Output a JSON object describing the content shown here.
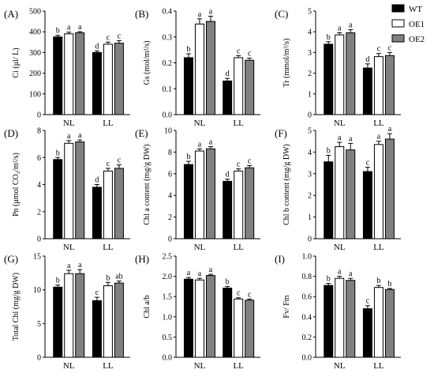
{
  "legend": {
    "entries": [
      {
        "name": "WT",
        "color": "#000000"
      },
      {
        "name": "OE1",
        "color": "#ffffff"
      },
      {
        "name": "OE2",
        "color": "#808080"
      }
    ],
    "placement": "top-right"
  },
  "colors": {
    "WT": "#000000",
    "OE1": "#ffffff",
    "OE2": "#808080"
  },
  "chart_data": [
    {
      "panel": "(A)",
      "type": "bar",
      "categories": [
        "NL",
        "LL"
      ],
      "ylabel": "Ci (μl/ L)",
      "ylim": [
        0,
        500
      ],
      "yticks": [
        "0",
        "100",
        "200",
        "300",
        "400",
        "500"
      ],
      "series": [
        {
          "name": "WT",
          "values": [
            375,
            300
          ],
          "errors": [
            8,
            8
          ],
          "letters": [
            "b",
            "d"
          ]
        },
        {
          "name": "OE1",
          "values": [
            390,
            340
          ],
          "errors": [
            8,
            10
          ],
          "letters": [
            "a",
            "c"
          ]
        },
        {
          "name": "OE2",
          "values": [
            395,
            345
          ],
          "errors": [
            6,
            12
          ],
          "letters": [
            "a",
            "c"
          ]
        }
      ]
    },
    {
      "panel": "(B)",
      "type": "bar",
      "categories": [
        "NL",
        "LL"
      ],
      "ylabel": "Gs (mol/m²/s)",
      "ylim": [
        0,
        0.4
      ],
      "yticks": [
        "0.0",
        "0.1",
        "0.2",
        "0.3",
        "0.4"
      ],
      "series": [
        {
          "name": "WT",
          "values": [
            0.22,
            0.13
          ],
          "errors": [
            0.015,
            0.01
          ],
          "letters": [
            "b",
            "d"
          ]
        },
        {
          "name": "OE1",
          "values": [
            0.35,
            0.22
          ],
          "errors": [
            0.02,
            0.008
          ],
          "letters": [
            "a",
            "c"
          ]
        },
        {
          "name": "OE2",
          "values": [
            0.36,
            0.21
          ],
          "errors": [
            0.02,
            0.008
          ],
          "letters": [
            "a",
            "c"
          ]
        }
      ]
    },
    {
      "panel": "(C)",
      "type": "bar",
      "categories": [
        "NL",
        "LL"
      ],
      "ylabel": "Tr (mmol/m²/s)",
      "ylim": [
        0,
        5
      ],
      "yticks": [
        "0",
        "1",
        "2",
        "3",
        "4",
        "5"
      ],
      "series": [
        {
          "name": "WT",
          "values": [
            3.4,
            2.25
          ],
          "errors": [
            0.12,
            0.2
          ],
          "letters": [
            "b",
            "d"
          ]
        },
        {
          "name": "OE1",
          "values": [
            3.85,
            2.8
          ],
          "errors": [
            0.1,
            0.15
          ],
          "letters": [
            "a",
            "c"
          ]
        },
        {
          "name": "OE2",
          "values": [
            3.95,
            2.85
          ],
          "errors": [
            0.15,
            0.15
          ],
          "letters": [
            "a",
            "c"
          ]
        }
      ]
    },
    {
      "panel": "(D)",
      "type": "bar",
      "categories": [
        "NL",
        "LL"
      ],
      "ylabel": "Pn (μmol CO₂/m²/s)",
      "ylim": [
        0,
        8
      ],
      "yticks": [
        "0",
        "2",
        "4",
        "6",
        "8"
      ],
      "series": [
        {
          "name": "WT",
          "values": [
            5.85,
            3.8
          ],
          "errors": [
            0.15,
            0.2
          ],
          "letters": [
            "b",
            "d"
          ]
        },
        {
          "name": "OE1",
          "values": [
            7.05,
            5.0
          ],
          "errors": [
            0.2,
            0.2
          ],
          "letters": [
            "a",
            "c"
          ]
        },
        {
          "name": "OE2",
          "values": [
            7.15,
            5.2
          ],
          "errors": [
            0.15,
            0.25
          ],
          "letters": [
            "a",
            "c"
          ]
        }
      ]
    },
    {
      "panel": "(E)",
      "type": "bar",
      "categories": [
        "NL",
        "LL"
      ],
      "ylabel": "Chl a content (mg/g DW)",
      "ylim": [
        0,
        10
      ],
      "yticks": [
        "0",
        "2",
        "4",
        "6",
        "8",
        "10"
      ],
      "series": [
        {
          "name": "WT",
          "values": [
            6.85,
            5.3
          ],
          "errors": [
            0.3,
            0.2
          ],
          "letters": [
            "b",
            "d"
          ]
        },
        {
          "name": "OE1",
          "values": [
            8.1,
            6.25
          ],
          "errors": [
            0.2,
            0.2
          ],
          "letters": [
            "a",
            "c"
          ]
        },
        {
          "name": "OE2",
          "values": [
            8.3,
            6.55
          ],
          "errors": [
            0.2,
            0.2
          ],
          "letters": [
            "a",
            "c"
          ]
        }
      ]
    },
    {
      "panel": "(F)",
      "type": "bar",
      "categories": [
        "NL",
        "LL"
      ],
      "ylabel": "Chl b content (mg/g DW)",
      "ylim": [
        0,
        5
      ],
      "yticks": [
        "0",
        "1",
        "2",
        "3",
        "4",
        "5"
      ],
      "series": [
        {
          "name": "WT",
          "values": [
            3.55,
            3.1
          ],
          "errors": [
            0.3,
            0.2
          ],
          "letters": [
            "b",
            "c"
          ]
        },
        {
          "name": "OE1",
          "values": [
            4.25,
            4.35
          ],
          "errors": [
            0.2,
            0.15
          ],
          "letters": [
            "a",
            "a"
          ]
        },
        {
          "name": "OE2",
          "values": [
            4.1,
            4.6
          ],
          "errors": [
            0.3,
            0.25
          ],
          "letters": [
            "a",
            "a"
          ]
        }
      ]
    },
    {
      "panel": "(G)",
      "type": "bar",
      "categories": [
        "NL",
        "LL"
      ],
      "ylabel": "Total Chl (mg/g DW)",
      "ylim": [
        0,
        15
      ],
      "yticks": [
        "0",
        "5",
        "10",
        "15"
      ],
      "series": [
        {
          "name": "WT",
          "values": [
            10.4,
            8.4
          ],
          "errors": [
            0.3,
            0.5
          ],
          "letters": [
            "b",
            "c"
          ]
        },
        {
          "name": "OE1",
          "values": [
            12.4,
            10.6
          ],
          "errors": [
            0.5,
            0.5
          ],
          "letters": [
            "a",
            "b"
          ]
        },
        {
          "name": "OE2",
          "values": [
            12.4,
            11.0
          ],
          "errors": [
            0.6,
            0.3
          ],
          "letters": [
            "a",
            "ab"
          ]
        }
      ]
    },
    {
      "panel": "(H)",
      "type": "bar",
      "categories": [
        "NL",
        "LL"
      ],
      "ylabel": "Chl a/b",
      "ylim": [
        0,
        2.5
      ],
      "yticks": [
        "0.0",
        "0.5",
        "1.0",
        "1.5",
        "2.0",
        "2.5"
      ],
      "series": [
        {
          "name": "WT",
          "values": [
            1.93,
            1.71
          ],
          "errors": [
            0.04,
            0.04
          ],
          "letters": [
            "a",
            "b"
          ]
        },
        {
          "name": "OE1",
          "values": [
            1.91,
            1.44
          ],
          "errors": [
            0.04,
            0.03
          ],
          "letters": [
            "a",
            "c"
          ]
        },
        {
          "name": "OE2",
          "values": [
            2.02,
            1.41
          ],
          "errors": [
            0.03,
            0.03
          ],
          "letters": [
            "a",
            "c"
          ]
        }
      ]
    },
    {
      "panel": "(I)",
      "type": "bar",
      "categories": [
        "NL",
        "LL"
      ],
      "ylabel": "Fv/ Fm",
      "ylim": [
        0,
        1.0
      ],
      "yticks": [
        "0.0",
        "0.2",
        "0.4",
        "0.6",
        "0.8",
        "1.0"
      ],
      "series": [
        {
          "name": "WT",
          "values": [
            0.71,
            0.48
          ],
          "errors": [
            0.02,
            0.03
          ],
          "letters": [
            "b",
            "c"
          ]
        },
        {
          "name": "OE1",
          "values": [
            0.78,
            0.69
          ],
          "errors": [
            0.02,
            0.02
          ],
          "letters": [
            "a",
            "b"
          ]
        },
        {
          "name": "OE2",
          "values": [
            0.76,
            0.67
          ],
          "errors": [
            0.02,
            0.01
          ],
          "letters": [
            "a",
            "b"
          ]
        }
      ]
    }
  ]
}
